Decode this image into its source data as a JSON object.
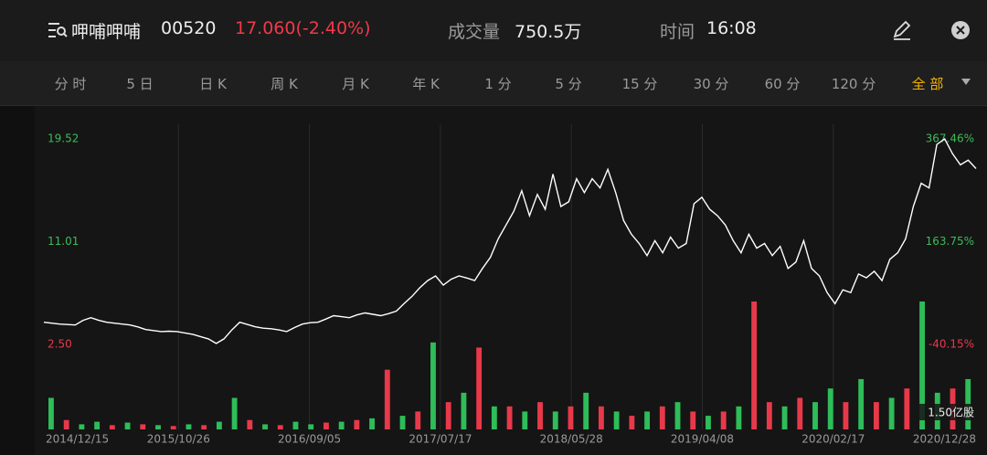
{
  "header": {
    "name": "呷哺呷哺",
    "code": "00520",
    "price": "17.060(-2.40%)",
    "volume_label": "成交量",
    "volume": "750.5万",
    "time_label": "时间",
    "time": "16:08"
  },
  "tabs": {
    "items": [
      "分 时",
      "5 日",
      "日 K",
      "周 K",
      "月 K",
      "年 K",
      "1 分",
      "5 分",
      "15 分",
      "30 分",
      "60 分",
      "120 分",
      "全 部"
    ],
    "active": 12
  },
  "chart_data": {
    "type": "line",
    "color": "#ffffff",
    "values": [
      4.34,
      4.26,
      4.19,
      4.15,
      4.11,
      4.5,
      4.72,
      4.5,
      4.34,
      4.26,
      4.19,
      4.11,
      3.95,
      3.73,
      3.65,
      3.57,
      3.6,
      3.57,
      3.45,
      3.34,
      3.15,
      2.96,
      2.58,
      2.96,
      3.7,
      4.34,
      4.15,
      3.96,
      3.85,
      3.8,
      3.7,
      3.57,
      3.9,
      4.19,
      4.3,
      4.34,
      4.6,
      4.88,
      4.8,
      4.72,
      4.95,
      5.11,
      5.0,
      4.88,
      5.05,
      5.26,
      5.9,
      6.49,
      7.2,
      7.79,
      8.17,
      7.41,
      7.9,
      8.17,
      8.0,
      7.79,
      8.8,
      9.71,
      11.24,
      12.39,
      13.54,
      15.23,
      13.16,
      14.92,
      13.69,
      16.61,
      13.92,
      14.31,
      16.22,
      15.07,
      16.22,
      15.46,
      16.99,
      15.07,
      12.77,
      11.62,
      10.86,
      9.86,
      11.09,
      10.09,
      11.39,
      10.47,
      10.86,
      14.15,
      14.69,
      13.69,
      13.16,
      12.39,
      11.09,
      10.09,
      11.62,
      10.47,
      10.86,
      9.86,
      10.62,
      8.79,
      9.32,
      11.09,
      8.79,
      8.17,
      6.79,
      5.87,
      7.02,
      6.79,
      8.33,
      8.02,
      8.56,
      7.79,
      9.55,
      10.09,
      11.24,
      13.92,
      15.84,
      15.46,
      19.06,
      19.52,
      18.29,
      17.37,
      17.76,
      17.06
    ],
    "ylim": [
      2.5,
      19.52
    ],
    "yticks": [
      19.52,
      11.01,
      {
        "value": 2.5,
        "label": "2.50"
      }
    ],
    "ytick_colors": [
      "#3dbb5a",
      "#3dbb5a",
      "#e8394a"
    ],
    "y2lim": [
      -40.15,
      367.46
    ],
    "y2ticks": [
      {
        "value": 367.46,
        "label": "367.46%"
      },
      {
        "value": 163.75,
        "label": "163.75%"
      },
      {
        "value": -40.15,
        "label": "-40.15%"
      }
    ],
    "y2tick_colors": [
      "#3dbb5a",
      "#3dbb5a",
      "#e8394a"
    ],
    "xticks": [
      "2014/12/15",
      "2015/10/26",
      "2016/09/05",
      "2017/07/17",
      "2018/05/28",
      "2019/04/08",
      "2020/02/17",
      "2020/12/28"
    ],
    "grid": true,
    "volume": {
      "type": "bar",
      "values": [
        0.37,
        0.11,
        0.06,
        0.09,
        0.05,
        0.08,
        0.06,
        0.05,
        0.04,
        0.06,
        0.05,
        0.09,
        0.37,
        0.11,
        0.06,
        0.05,
        0.09,
        0.06,
        0.08,
        0.09,
        0.11,
        0.13,
        0.7,
        0.16,
        0.21,
        1.02,
        0.32,
        0.43,
        0.96,
        0.27,
        0.27,
        0.21,
        0.32,
        0.21,
        0.27,
        0.43,
        0.27,
        0.21,
        0.16,
        0.21,
        0.27,
        0.32,
        0.21,
        0.16,
        0.21,
        0.27,
        1.5,
        0.32,
        0.27,
        0.37,
        0.32,
        0.48,
        0.32,
        0.59,
        0.32,
        0.37,
        0.48,
        1.5,
        0.43,
        0.48,
        0.59
      ],
      "colors": [
        "#2ebd59",
        "#e8394a",
        "#2ebd59",
        "#2ebd59",
        "#e8394a",
        "#2ebd59",
        "#e8394a",
        "#2ebd59",
        "#e8394a",
        "#2ebd59",
        "#e8394a",
        "#2ebd59",
        "#2ebd59",
        "#e8394a",
        "#2ebd59",
        "#e8394a",
        "#2ebd59",
        "#2ebd59",
        "#e8394a",
        "#2ebd59",
        "#e8394a",
        "#2ebd59",
        "#e8394a",
        "#2ebd59",
        "#e8394a",
        "#2ebd59",
        "#e8394a",
        "#2ebd59",
        "#e8394a",
        "#2ebd59",
        "#e8394a",
        "#2ebd59",
        "#e8394a",
        "#2ebd59",
        "#e8394a",
        "#2ebd59",
        "#e8394a",
        "#2ebd59",
        "#e8394a",
        "#2ebd59",
        "#e8394a",
        "#2ebd59",
        "#e8394a",
        "#2ebd59",
        "#e8394a",
        "#2ebd59",
        "#e8394a",
        "#e8394a",
        "#2ebd59",
        "#e8394a",
        "#2ebd59",
        "#2ebd59",
        "#e8394a",
        "#2ebd59",
        "#e8394a",
        "#2ebd59",
        "#e8394a",
        "#2ebd59",
        "#2ebd59",
        "#e8394a",
        "#2ebd59"
      ],
      "ylim": [
        0,
        1.5
      ],
      "yticks": [
        {
          "value": 1.5,
          "label": "1.50亿股"
        }
      ]
    }
  }
}
